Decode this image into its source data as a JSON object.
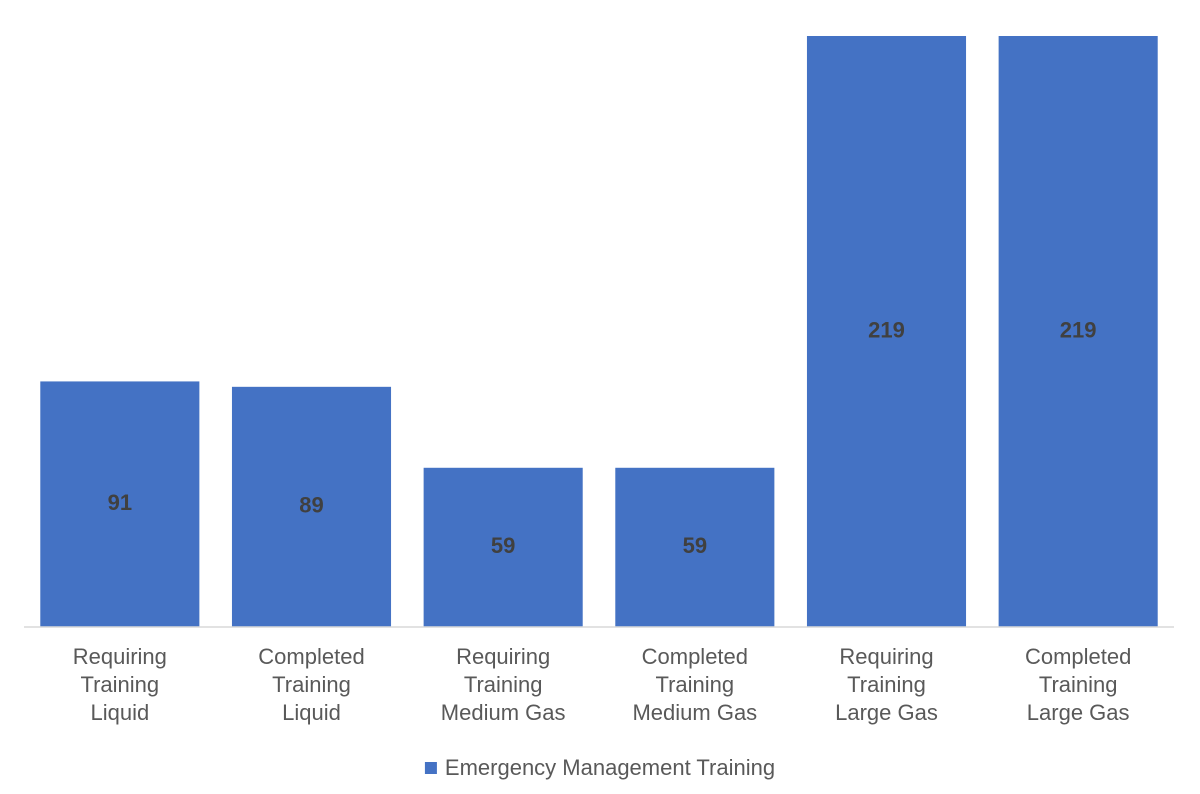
{
  "chart_data": {
    "type": "bar",
    "categories": [
      [
        "Requiring",
        "Training",
        "Liquid"
      ],
      [
        "Completed",
        "Training",
        "Liquid"
      ],
      [
        "Requiring",
        "Training",
        "Medium Gas"
      ],
      [
        "Completed",
        "Training",
        "Medium Gas"
      ],
      [
        "Requiring",
        "Training",
        "Large Gas"
      ],
      [
        "Completed",
        "Training",
        "Large Gas"
      ]
    ],
    "series": [
      {
        "name": "Emergency Management Training",
        "color": "#4472c4",
        "values": [
          91,
          89,
          59,
          59,
          219,
          219
        ]
      }
    ],
    "legend": "bottom"
  }
}
